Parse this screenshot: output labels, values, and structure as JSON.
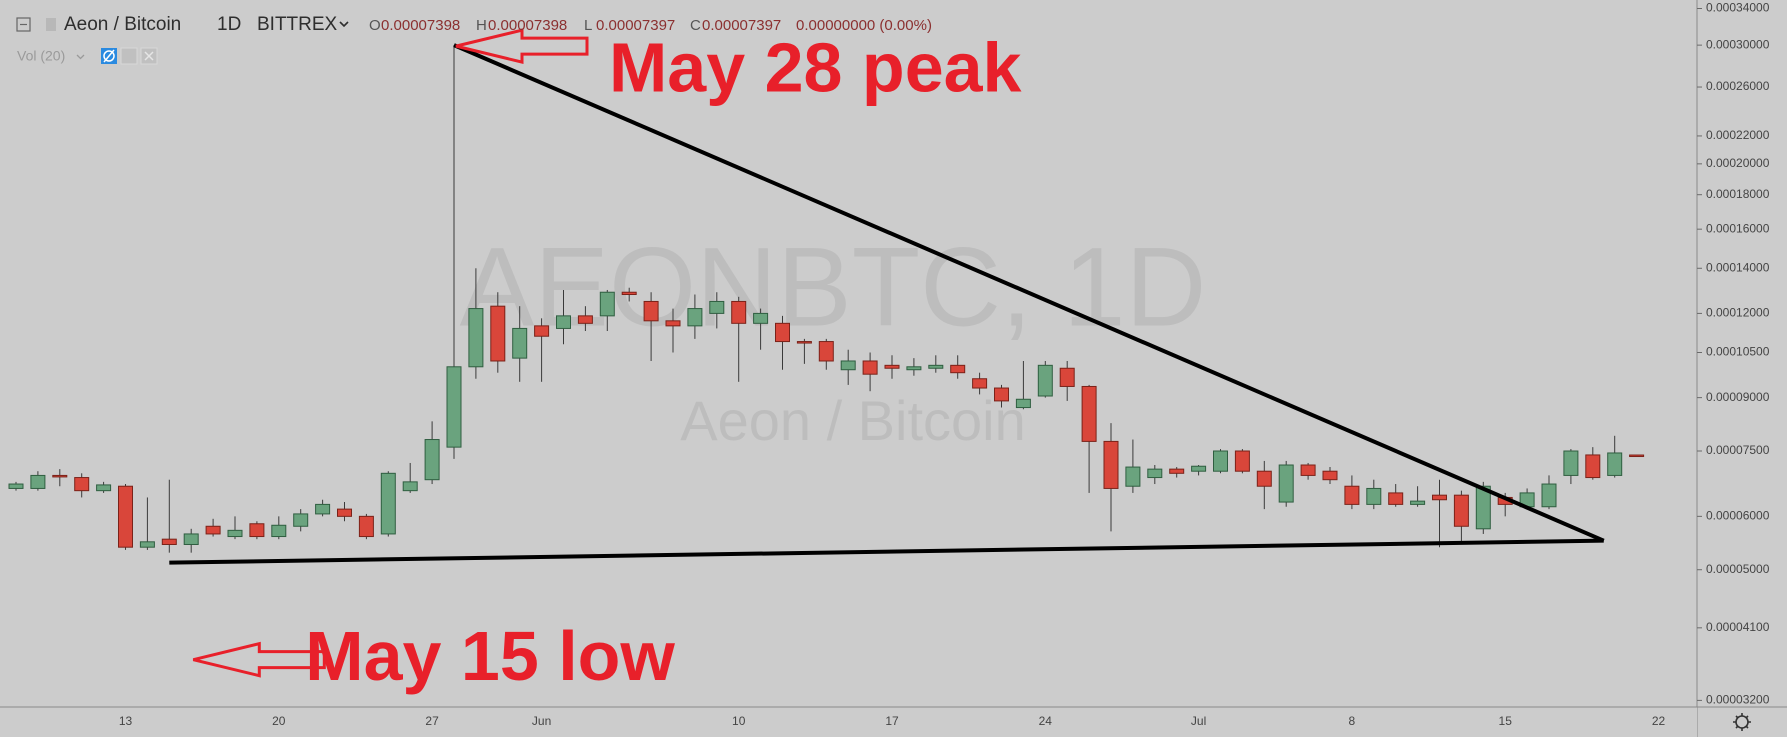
{
  "chart_data": {
    "type": "candlestick",
    "symbol": "Aeon / Bitcoin",
    "interval": "1D",
    "exchange": "BITTREX",
    "ohlc_header": [
      {
        "label": "O",
        "value": "0.00007398"
      },
      {
        "label": "H",
        "value": "0.00007398"
      },
      {
        "label": "L",
        "value": "0.00007397"
      },
      {
        "label": "C",
        "value": "0.00007397"
      }
    ],
    "change": "0.00000000 (0.00%)",
    "indicator": "Vol (20)",
    "watermark": "AEONBTC, 1D",
    "watermark_subtitle": "Aeon / Bitcoin",
    "annotations": [
      "May 28 peak",
      "May 15 low"
    ],
    "log_scale": true,
    "grid": false,
    "up_color": "#6aa37e",
    "down_color": "#d9463a",
    "categories": [
      null,
      null,
      null,
      null,
      null,
      "13",
      null,
      null,
      null,
      null,
      null,
      null,
      "20",
      null,
      null,
      null,
      null,
      null,
      null,
      "27",
      null,
      null,
      null,
      null,
      "Jun",
      null,
      null,
      null,
      null,
      null,
      null,
      null,
      null,
      "10",
      null,
      null,
      null,
      null,
      null,
      null,
      "17",
      null,
      null,
      null,
      null,
      null,
      null,
      "24",
      null,
      null,
      null,
      null,
      null,
      null,
      "Jul",
      null,
      null,
      null,
      null,
      null,
      null,
      "8",
      null,
      null,
      null,
      null,
      null,
      null,
      "15",
      null,
      null,
      null,
      null,
      null,
      null,
      "22"
    ],
    "open": [
      6.6e-05,
      6.6e-05,
      6.9e-05,
      6.85e-05,
      6.55e-05,
      6.65e-05,
      5.4e-05,
      5.55e-05,
      5.45e-05,
      5.8e-05,
      5.6e-05,
      5.85e-05,
      5.6e-05,
      5.8e-05,
      6.05e-05,
      6.15e-05,
      6e-05,
      5.65e-05,
      6.55e-05,
      6.8e-05,
      7.6e-05,
      0.0001,
      0.000123,
      0.000103,
      0.000115,
      0.000114,
      0.000119,
      0.000119,
      0.000129,
      0.000125,
      0.000117,
      0.000115,
      0.00012,
      0.000125,
      0.000116,
      0.000116,
      0.000109,
      0.000109,
      9.9e-05,
      0.000102,
      0.0001005,
      9.9e-05,
      9.95e-05,
      0.0001005,
      9.6e-05,
      9.3e-05,
      8.7e-05,
      9.05e-05,
      9.95e-05,
      9.35e-05,
      7.75e-05,
      6.65e-05,
      6.85e-05,
      7.05e-05,
      7e-05,
      7e-05,
      7.5e-05,
      7e-05,
      6.3e-05,
      7.15e-05,
      7e-05,
      6.65e-05,
      6.25e-05,
      6.5e-05,
      6.25e-05,
      6.45e-05,
      6.45e-05,
      5.75e-05,
      6.4e-05,
      6.2e-05,
      6.2e-05,
      6.9e-05,
      7.4e-05,
      6.9e-05,
      7.398e-05,
      null
    ],
    "high": [
      6.75e-05,
      7e-05,
      7.05e-05,
      6.95e-05,
      6.75e-05,
      6.7e-05,
      6.4e-05,
      6.8e-05,
      5.75e-05,
      5.95e-05,
      6e-05,
      5.9e-05,
      6e-05,
      6.15e-05,
      6.35e-05,
      6.3e-05,
      6.05e-05,
      7e-05,
      7.2e-05,
      8.3e-05,
      0.0003,
      0.00014,
      0.000129,
      0.000123,
      0.000118,
      0.00013,
      0.000123,
      0.00013,
      0.000131,
      0.000129,
      0.000122,
      0.000128,
      0.000129,
      0.000127,
      0.000122,
      0.000119,
      0.00011,
      0.00011,
      0.000106,
      0.000105,
      0.000104,
      0.000103,
      0.000104,
      0.000104,
      9.8e-05,
      9.4e-05,
      0.000102,
      0.000102,
      0.000102,
      9.4e-05,
      8.25e-05,
      7.8e-05,
      7.15e-05,
      7.1e-05,
      7.15e-05,
      7.55e-05,
      7.55e-05,
      7.25e-05,
      7.25e-05,
      7.2e-05,
      7.1e-05,
      6.9e-05,
      6.8e-05,
      6.7e-05,
      6.65e-05,
      6.8e-05,
      6.55e-05,
      6.75e-05,
      6.5e-05,
      6.6e-05,
      6.9e-05,
      7.55e-05,
      7.6e-05,
      7.9e-05,
      7.398e-05,
      null
    ],
    "low": [
      6.55e-05,
      6.55e-05,
      6.65e-05,
      6.4e-05,
      6.5e-05,
      5.35e-05,
      5.35e-05,
      5.3e-05,
      5.3e-05,
      5.6e-05,
      5.55e-05,
      5.55e-05,
      5.55e-05,
      5.7e-05,
      6e-05,
      5.9e-05,
      5.55e-05,
      5.6e-05,
      6.5e-05,
      6.7e-05,
      7.3e-05,
      9.6e-05,
      9.8e-05,
      9.5e-05,
      9.5e-05,
      0.000108,
      0.000113,
      0.000113,
      0.000125,
      0.000102,
      0.000105,
      0.00011,
      0.000114,
      9.5e-05,
      0.000106,
      9.9e-05,
      0.000101,
      9.9e-05,
      9.4e-05,
      9.2e-05,
      9.6e-05,
      9.7e-05,
      9.8e-05,
      9.6e-05,
      9.1e-05,
      8.7e-05,
      8.65e-05,
      9e-05,
      8.9e-05,
      6.5e-05,
      5.7e-05,
      6.5e-05,
      6.7e-05,
      6.85e-05,
      6.9e-05,
      6.95e-05,
      6.95e-05,
      6.15e-05,
      6.2e-05,
      6.8e-05,
      6.7e-05,
      6.15e-05,
      6.15e-05,
      6.2e-05,
      6.2e-05,
      5.4e-05,
      5.45e-05,
      5.65e-05,
      6e-05,
      6.15e-05,
      6.15e-05,
      6.7e-05,
      6.8e-05,
      6.85e-05,
      7.397e-05,
      null
    ],
    "close": [
      6.7e-05,
      6.9e-05,
      6.88e-05,
      6.55e-05,
      6.68e-05,
      5.4e-05,
      5.5e-05,
      5.45e-05,
      5.65e-05,
      5.65e-05,
      5.72e-05,
      5.6e-05,
      5.82e-05,
      6.05e-05,
      6.25e-05,
      6e-05,
      5.6e-05,
      6.95e-05,
      6.75e-05,
      7.8e-05,
      0.0001,
      0.000122,
      0.000102,
      0.000114,
      0.000111,
      0.000119,
      0.000116,
      0.000129,
      0.000128,
      0.000117,
      0.000115,
      0.000122,
      0.000125,
      0.000116,
      0.00012,
      0.000109,
      0.0001085,
      0.000102,
      0.000102,
      9.75e-05,
      9.95e-05,
      0.0001,
      0.0001005,
      9.8e-05,
      9.3e-05,
      8.9e-05,
      8.95e-05,
      0.0001005,
      9.35e-05,
      7.75e-05,
      6.6e-05,
      7.1e-05,
      7.05e-05,
      6.95e-05,
      7.12e-05,
      7.5e-05,
      7e-05,
      6.65e-05,
      7.15e-05,
      6.9e-05,
      6.8e-05,
      6.25e-05,
      6.6e-05,
      6.25e-05,
      6.32e-05,
      6.35e-05,
      5.8e-05,
      6.65e-05,
      6.25e-05,
      6.5e-05,
      6.7e-05,
      7.5e-05,
      6.85e-05,
      7.45e-05,
      7.397e-05,
      null
    ],
    "ylim": [
      3.15e-05,
      0.00035
    ],
    "yticks": [
      {
        "value": 0.00034,
        "label": "0.00034000"
      },
      {
        "value": 0.0003,
        "label": "0.00030000"
      },
      {
        "value": 0.00026,
        "label": "0.00026000"
      },
      {
        "value": 0.00022,
        "label": "0.00022000"
      },
      {
        "value": 0.0002,
        "label": "0.00020000"
      },
      {
        "value": 0.00018,
        "label": "0.00018000"
      },
      {
        "value": 0.00016,
        "label": "0.00016000"
      },
      {
        "value": 0.00014,
        "label": "0.00014000"
      },
      {
        "value": 0.00012,
        "label": "0.00012000"
      },
      {
        "value": 0.000105,
        "label": "0.00010500"
      },
      {
        "value": 9e-05,
        "label": "0.00009000"
      },
      {
        "value": 7.5e-05,
        "label": "0.00007500"
      },
      {
        "value": 6e-05,
        "label": "0.00006000"
      },
      {
        "value": 5e-05,
        "label": "0.00005000"
      },
      {
        "value": 4.1e-05,
        "label": "0.00004100"
      },
      {
        "value": 3.2e-05,
        "label": "0.00003200"
      }
    ]
  }
}
